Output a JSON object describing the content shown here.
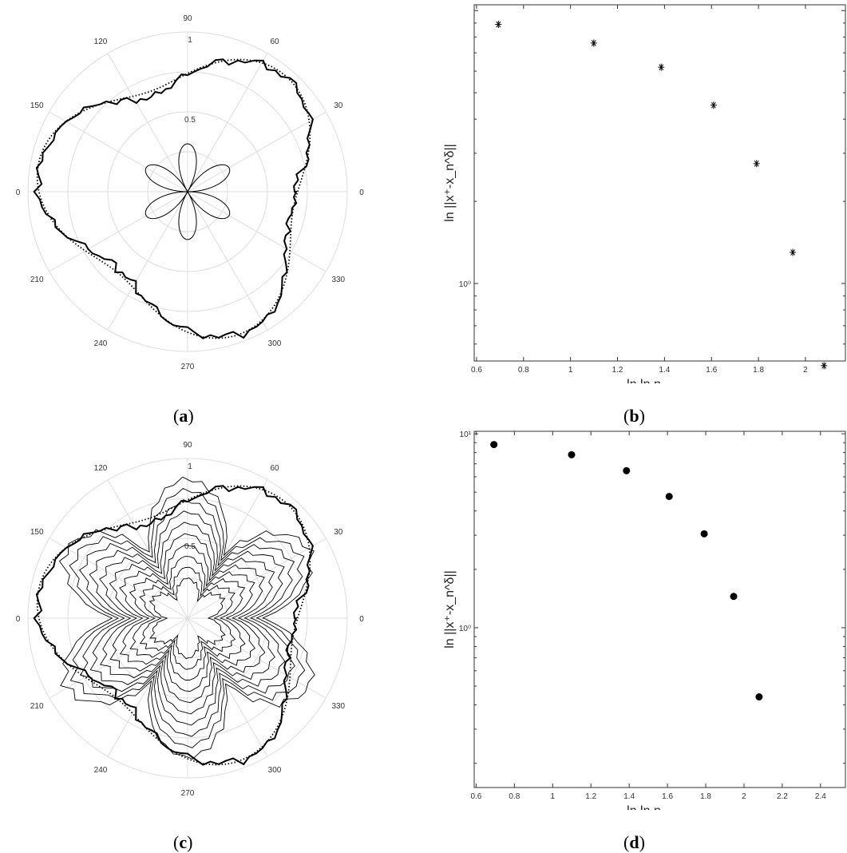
{
  "captions": {
    "a": "a",
    "b": "b",
    "c": "c",
    "d": "d"
  },
  "chart_data": [
    {
      "panel": "a",
      "type": "polar",
      "angle_ticks": [
        "0",
        "30",
        "60",
        "90",
        "120",
        "150",
        "180",
        "210",
        "240",
        "270",
        "300",
        "330"
      ],
      "radial_ticks": [
        "0.5",
        "1"
      ],
      "rlim": [
        0,
        1
      ],
      "series": [
        {
          "style": "dotted",
          "shape": "smooth three-lobed curve",
          "r_max": 0.95
        },
        {
          "style": "thick solid",
          "shape": "jagged three-lobed curve",
          "r_max": 0.96
        },
        {
          "style": "thin solid",
          "shape": "small three-petal curve at origin",
          "r_max": 0.35
        }
      ]
    },
    {
      "panel": "b",
      "type": "scatter",
      "marker": "asterisk",
      "xlabel": "ln ln n",
      "ylabel": "ln ||x⁺-x_n^δ||",
      "yscale": "log",
      "x_ticks": [
        "0.6",
        "0.8",
        "1",
        "1.2",
        "1.4",
        "1.6",
        "1.8",
        "2",
        "2.2"
      ],
      "y_ticks": [
        "10⁰"
      ],
      "xlim": [
        0.59,
        2.17
      ],
      "ylim": [
        0.52,
        10.5
      ],
      "x": [
        0.693,
        1.099,
        1.386,
        1.609,
        1.792,
        1.946,
        2.079
      ],
      "y": [
        8.9,
        7.6,
        6.2,
        4.5,
        2.75,
        1.3,
        0.5
      ]
    },
    {
      "panel": "c",
      "type": "polar",
      "angle_ticks": [
        "0",
        "30",
        "60",
        "90",
        "120",
        "150",
        "180",
        "210",
        "240",
        "270",
        "300",
        "330"
      ],
      "radial_ticks": [
        "0.5",
        "1"
      ],
      "rlim": [
        0,
        1
      ],
      "series": [
        {
          "style": "dotted",
          "shape": "smooth three-lobed curve",
          "r_max": 0.95
        },
        {
          "style": "thick solid",
          "shape": "jagged three-lobed curve",
          "r_max": 0.96
        },
        {
          "style": "thin solid",
          "shape": "nested jagged three-lobed curves",
          "count": 10
        }
      ]
    },
    {
      "panel": "d",
      "type": "scatter",
      "marker": "filled circle",
      "xlabel": "ln ln n",
      "ylabel": "ln ||x⁺-x_n^δ||",
      "yscale": "log",
      "x_ticks": [
        "0.6",
        "0.8",
        "1",
        "1.2",
        "1.4",
        "1.6",
        "1.8",
        "2",
        "2.2",
        "2.4"
      ],
      "y_ticks": [
        "10⁰",
        "10¹"
      ],
      "xlim": [
        0.59,
        2.53
      ],
      "ylim": [
        0.15,
        10.3
      ],
      "x": [
        0.693,
        1.099,
        1.386,
        1.609,
        1.792,
        1.946,
        2.079
      ],
      "y": [
        8.8,
        7.8,
        6.45,
        4.75,
        3.05,
        1.45,
        0.44
      ]
    }
  ]
}
